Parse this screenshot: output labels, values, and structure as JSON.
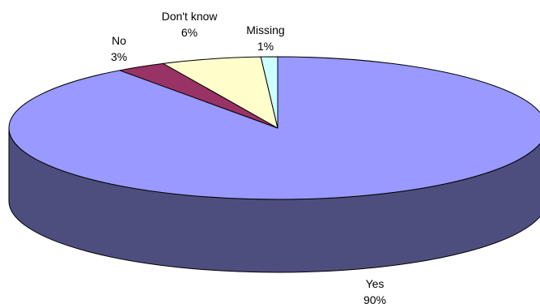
{
  "chart_data": {
    "type": "pie",
    "style": "3d",
    "slices": [
      {
        "label": "Yes",
        "value": 90,
        "value_label": "90%",
        "color": "#9999ff",
        "side_color": "#4e4e7e"
      },
      {
        "label": "No",
        "value": 3,
        "value_label": "3%",
        "color": "#993366",
        "side_color": "#5c1f3d"
      },
      {
        "label": "Don't know",
        "value": 6,
        "value_label": "6%",
        "color": "#ffffcc",
        "side_color": "#a8a87e"
      },
      {
        "label": "Missing",
        "value": 1,
        "value_label": "1%",
        "color": "#ccffff",
        "side_color": "#7fa8a8"
      }
    ],
    "legend": "none",
    "outline_color": "#000000"
  }
}
